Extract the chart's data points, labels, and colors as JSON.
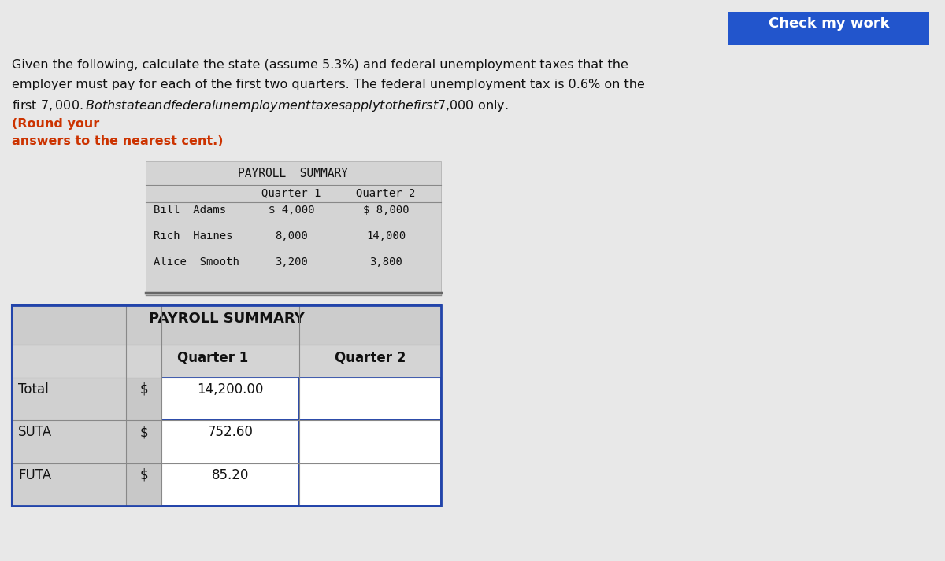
{
  "background_color": "#e8e8e8",
  "check_my_work_text": "Check my work",
  "check_my_work_bg": "#2255cc",
  "check_my_work_text_color": "#ffffff",
  "intro_line1": "Given the following, calculate the state (assume 5.3%) and federal unemployment taxes that the",
  "intro_line2": "employer must pay for each of the first two quarters. The federal unemployment tax is 0.6% on the",
  "intro_line3": "first $7,000. Both state and federal unemployment taxes apply to the first $7,000 only.",
  "intro_bold1": "(Round your",
  "intro_bold2": "answers to the nearest cent.)",
  "top_table_header": "PAYROLL  SUMMARY",
  "top_table_subheader": [
    "Quarter 1",
    "Quarter 2"
  ],
  "top_table_rows": [
    [
      "Bill  Adams",
      "$ 4,000",
      "$ 8,000"
    ],
    [
      "Rich  Haines",
      "8,000",
      "14,000"
    ],
    [
      "Alice  Smooth",
      "3,200",
      "3,800"
    ]
  ],
  "bottom_table_title": "PAYROLL SUMMARY",
  "bottom_table_rows": [
    [
      "Total",
      "$",
      "14,200.00"
    ],
    [
      "SUTA",
      "$",
      "752.60"
    ],
    [
      "FUTA",
      "$",
      "85.20"
    ]
  ],
  "top_table_bg": "#d4d4d4",
  "bottom_table_border": "#2244aa",
  "bottom_row_label_bg": "#d0d0d0",
  "bottom_dollar_bg": "#c8c8c8",
  "bottom_value_bg": "#ffffff",
  "bottom_q2_bg": "#ffffff",
  "bottom_header_bg": "#d0d0d0",
  "bottom_subheader_bg": "#d8d8d8"
}
